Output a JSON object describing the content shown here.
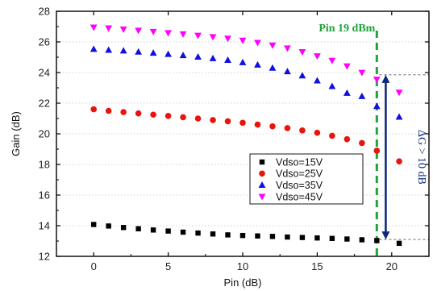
{
  "chart_data": {
    "type": "scatter",
    "xlabel": "Pin (dB)",
    "ylabel": "Gain (dB)",
    "xlim": [
      -2.5,
      22.5
    ],
    "ylim": [
      12,
      28
    ],
    "xticks": [
      "0",
      "5",
      "10",
      "15",
      "20"
    ],
    "yticks": [
      "12",
      "14",
      "16",
      "18",
      "20",
      "22",
      "24",
      "26",
      "28"
    ],
    "grid": "horizontal-dotted",
    "legend_position": "lower-right",
    "x": [
      0,
      1,
      2,
      3,
      4,
      5,
      6,
      7,
      8,
      9,
      10,
      11,
      12,
      13,
      14,
      15,
      16,
      17,
      18,
      19,
      20.5
    ],
    "series": [
      {
        "name": "Vdso=15V",
        "marker": "square",
        "color": "#000000",
        "values": [
          14.08,
          13.98,
          13.88,
          13.8,
          13.72,
          13.65,
          13.58,
          13.52,
          13.46,
          13.4,
          13.36,
          13.33,
          13.3,
          13.26,
          13.23,
          13.2,
          13.17,
          13.13,
          13.08,
          13.03,
          12.85
        ]
      },
      {
        "name": "Vdso=25V",
        "marker": "circle",
        "color": "#e8150d",
        "values": [
          21.6,
          21.5,
          21.42,
          21.33,
          21.25,
          21.17,
          21.08,
          21.0,
          20.9,
          20.82,
          20.72,
          20.6,
          20.49,
          20.37,
          20.22,
          20.07,
          19.87,
          19.65,
          19.4,
          18.9,
          18.2
        ]
      },
      {
        "name": "Vdso=35V",
        "marker": "triangle-up",
        "color": "#1010e0",
        "values": [
          25.53,
          25.47,
          25.42,
          25.35,
          25.28,
          25.2,
          25.12,
          25.02,
          24.92,
          24.81,
          24.66,
          24.5,
          24.3,
          24.07,
          23.8,
          23.47,
          23.1,
          22.66,
          22.45,
          21.8,
          21.1
        ]
      },
      {
        "name": "Vdso=45V",
        "marker": "triangle-down",
        "color": "#ff00ff",
        "values": [
          26.95,
          26.9,
          26.83,
          26.75,
          26.67,
          26.59,
          26.51,
          26.42,
          26.33,
          26.23,
          26.1,
          25.95,
          25.78,
          25.59,
          25.35,
          25.08,
          24.78,
          24.42,
          24.0,
          23.55,
          22.7
        ]
      }
    ],
    "annotations": {
      "pin_label": "Pin 19 dBm",
      "pin_label_color": "#1fa33b",
      "pin_line_x": 19,
      "delta_label": "ΔG > 10 dB",
      "delta_color": "#0d2a7a",
      "delta_x": 19.6,
      "delta_top": 23.85,
      "delta_bottom": 13.1
    }
  }
}
